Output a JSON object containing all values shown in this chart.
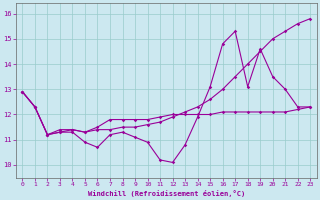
{
  "xlabel": "Windchill (Refroidissement éolien,°C)",
  "bg_color": "#cce8f0",
  "line_color": "#990099",
  "grid_color": "#99cccc",
  "axis_color": "#666666",
  "text_color": "#990099",
  "xlim": [
    -0.5,
    23.5
  ],
  "ylim": [
    9.5,
    16.4
  ],
  "yticks": [
    10,
    11,
    12,
    13,
    14,
    15,
    16
  ],
  "xticks": [
    0,
    1,
    2,
    3,
    4,
    5,
    6,
    7,
    8,
    9,
    10,
    11,
    12,
    13,
    14,
    15,
    16,
    17,
    18,
    19,
    20,
    21,
    22,
    23
  ],
  "line1_x": [
    0,
    1,
    2,
    3,
    4,
    5,
    6,
    7,
    8,
    9,
    10,
    11,
    12,
    13,
    14,
    15,
    16,
    17,
    18,
    19,
    20,
    21,
    22,
    23
  ],
  "line1_y": [
    12.9,
    12.3,
    11.2,
    11.3,
    11.3,
    10.9,
    10.7,
    11.2,
    11.3,
    11.1,
    10.9,
    10.2,
    10.1,
    10.8,
    11.9,
    13.1,
    14.8,
    15.3,
    13.1,
    14.6,
    13.5,
    13.0,
    12.3,
    12.3
  ],
  "line2_x": [
    0,
    1,
    2,
    3,
    4,
    5,
    6,
    7,
    8,
    9,
    10,
    11,
    12,
    13,
    14,
    15,
    16,
    17,
    18,
    19,
    20,
    21,
    22,
    23
  ],
  "line2_y": [
    12.9,
    12.3,
    11.2,
    11.4,
    11.4,
    11.3,
    11.4,
    11.4,
    11.5,
    11.5,
    11.6,
    11.7,
    11.9,
    12.1,
    12.3,
    12.6,
    13.0,
    13.5,
    14.0,
    14.5,
    15.0,
    15.3,
    15.6,
    15.8
  ],
  "line3_x": [
    0,
    1,
    2,
    3,
    4,
    5,
    6,
    7,
    8,
    9,
    10,
    11,
    12,
    13,
    14,
    15,
    16,
    17,
    18,
    19,
    20,
    21,
    22,
    23
  ],
  "line3_y": [
    12.9,
    12.3,
    11.2,
    11.3,
    11.4,
    11.3,
    11.5,
    11.8,
    11.8,
    11.8,
    11.8,
    11.9,
    12.0,
    12.0,
    12.0,
    12.0,
    12.1,
    12.1,
    12.1,
    12.1,
    12.1,
    12.1,
    12.2,
    12.3
  ]
}
